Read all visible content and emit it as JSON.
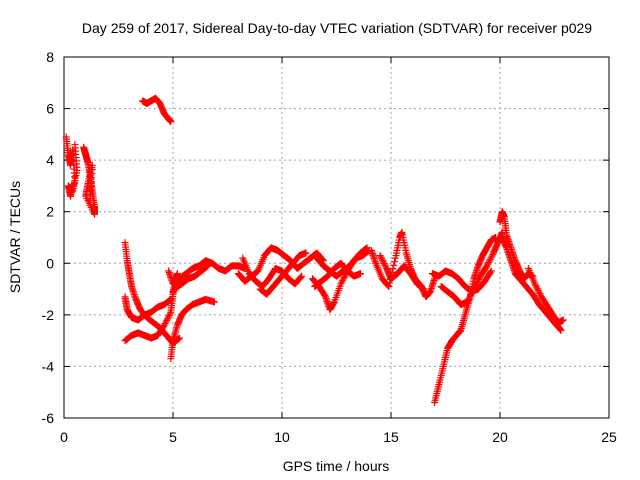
{
  "chart_data": {
    "type": "scatter",
    "title": "Day 259 of 2017, Sidereal Day-to-day VTEC variation (SDTVAR) for receiver p029",
    "xlabel": "GPS time / hours",
    "ylabel": "SDTVAR / TECUs",
    "xlim": [
      0,
      25
    ],
    "ylim": [
      -6,
      8
    ],
    "xticks": [
      0,
      5,
      10,
      15,
      20,
      25
    ],
    "yticks": [
      -6,
      -4,
      -2,
      0,
      2,
      4,
      6,
      8
    ],
    "xtick_labels": [
      "0",
      "5",
      "10",
      "15",
      "20",
      "25"
    ],
    "ytick_labels": [
      "-6",
      "-4",
      "-2",
      "0",
      "2",
      "4",
      "6",
      "8"
    ],
    "grid": true,
    "marker": "plus",
    "series": [
      {
        "name": "SDTVAR",
        "color": "#ff0000",
        "segments": [
          [
            [
              0.1,
              4.9
            ],
            [
              0.2,
              4.2
            ],
            [
              0.3,
              3.8
            ],
            [
              0.4,
              4.4
            ],
            [
              0.5,
              3.2
            ],
            [
              0.3,
              2.6
            ],
            [
              0.2,
              3.0
            ],
            [
              0.4,
              2.8
            ],
            [
              0.6,
              3.6
            ],
            [
              0.5,
              4.6
            ]
          ],
          [
            [
              0.9,
              4.5
            ],
            [
              1.0,
              4.2
            ],
            [
              1.1,
              3.9
            ],
            [
              1.2,
              3.4
            ],
            [
              1.3,
              2.8
            ],
            [
              1.4,
              2.2
            ],
            [
              1.4,
              1.9
            ],
            [
              1.0,
              2.6
            ],
            [
              1.1,
              3.1
            ],
            [
              1.3,
              3.8
            ],
            [
              1.2,
              2.5
            ]
          ],
          [
            [
              3.6,
              6.3
            ],
            [
              3.8,
              6.2
            ],
            [
              4.0,
              6.3
            ],
            [
              4.2,
              6.4
            ],
            [
              4.4,
              6.2
            ],
            [
              4.6,
              5.8
            ],
            [
              4.8,
              5.6
            ],
            [
              4.9,
              5.5
            ]
          ],
          [
            [
              2.8,
              0.8
            ],
            [
              2.9,
              0.1
            ],
            [
              3.0,
              -0.4
            ],
            [
              3.1,
              -0.9
            ],
            [
              3.3,
              -1.4
            ],
            [
              3.5,
              -1.8
            ],
            [
              3.8,
              -2.1
            ],
            [
              4.1,
              -2.3
            ],
            [
              4.4,
              -2.5
            ],
            [
              4.7,
              -2.8
            ],
            [
              5.0,
              -3.1
            ],
            [
              5.3,
              -2.9
            ]
          ],
          [
            [
              2.8,
              -1.3
            ],
            [
              2.9,
              -1.8
            ],
            [
              3.1,
              -2.1
            ],
            [
              3.4,
              -2.2
            ],
            [
              3.7,
              -2.0
            ],
            [
              4.0,
              -1.9
            ],
            [
              4.3,
              -1.7
            ],
            [
              4.6,
              -1.6
            ],
            [
              4.9,
              -1.4
            ]
          ],
          [
            [
              2.8,
              -3.0
            ],
            [
              3.1,
              -2.8
            ],
            [
              3.4,
              -2.7
            ],
            [
              3.7,
              -2.8
            ],
            [
              4.0,
              -2.9
            ],
            [
              4.3,
              -2.8
            ],
            [
              4.6,
              -2.4
            ],
            [
              4.9,
              -1.9
            ],
            [
              5.0,
              -1.2
            ],
            [
              5.1,
              -0.7
            ],
            [
              5.2,
              -0.4
            ]
          ],
          [
            [
              4.9,
              -3.7
            ],
            [
              5.0,
              -3.0
            ],
            [
              5.2,
              -2.4
            ],
            [
              5.4,
              -2.0
            ],
            [
              5.6,
              -1.8
            ],
            [
              5.9,
              -1.6
            ],
            [
              6.2,
              -1.5
            ],
            [
              6.5,
              -1.4
            ],
            [
              6.9,
              -1.5
            ]
          ],
          [
            [
              4.8,
              -0.3
            ],
            [
              5.0,
              -0.8
            ],
            [
              5.3,
              -0.6
            ],
            [
              5.6,
              -0.4
            ],
            [
              5.9,
              -0.2
            ],
            [
              6.2,
              -0.1
            ],
            [
              6.5,
              0.1
            ],
            [
              6.8,
              0.0
            ],
            [
              7.1,
              -0.2
            ],
            [
              7.4,
              -0.3
            ],
            [
              7.7,
              -0.1
            ],
            [
              8.0,
              -0.1
            ],
            [
              8.3,
              -0.2
            ]
          ],
          [
            [
              5.0,
              -1.1
            ],
            [
              5.2,
              -0.9
            ],
            [
              5.4,
              -0.8
            ],
            [
              5.7,
              -0.6
            ],
            [
              6.0,
              -0.5
            ],
            [
              6.3,
              -0.3
            ],
            [
              6.6,
              -0.1
            ]
          ],
          [
            [
              8.0,
              -0.4
            ],
            [
              8.3,
              -0.7
            ],
            [
              8.6,
              -0.5
            ],
            [
              8.9,
              -0.3
            ],
            [
              9.2,
              0.3
            ],
            [
              9.5,
              0.6
            ],
            [
              9.8,
              0.5
            ],
            [
              10.1,
              0.3
            ],
            [
              10.4,
              0.1
            ],
            [
              10.7,
              -0.2
            ],
            [
              11.0,
              0.0
            ],
            [
              11.3,
              0.2
            ],
            [
              11.6,
              0.4
            ],
            [
              11.9,
              0.1
            ]
          ],
          [
            [
              8.2,
              0.2
            ],
            [
              8.5,
              -0.4
            ],
            [
              8.8,
              -0.7
            ],
            [
              9.1,
              -0.9
            ],
            [
              9.4,
              -0.6
            ],
            [
              9.7,
              -0.2
            ],
            [
              10.0,
              -0.3
            ],
            [
              10.3,
              -0.6
            ],
            [
              10.6,
              -0.8
            ],
            [
              10.9,
              -0.5
            ]
          ],
          [
            [
              9.0,
              -1.0
            ],
            [
              9.3,
              -1.2
            ],
            [
              9.6,
              -0.9
            ],
            [
              9.9,
              -0.6
            ],
            [
              10.2,
              -0.3
            ],
            [
              10.5,
              0.0
            ],
            [
              10.8,
              0.3
            ],
            [
              11.1,
              0.4
            ]
          ],
          [
            [
              11.4,
              -0.6
            ],
            [
              11.7,
              -0.9
            ],
            [
              12.0,
              -1.3
            ],
            [
              12.2,
              -1.8
            ],
            [
              12.4,
              -1.5
            ],
            [
              12.7,
              -0.8
            ],
            [
              13.0,
              -0.3
            ],
            [
              13.3,
              0.1
            ],
            [
              13.6,
              0.4
            ],
            [
              13.9,
              0.6
            ]
          ],
          [
            [
              11.6,
              0.2
            ],
            [
              11.9,
              -0.1
            ],
            [
              12.2,
              -0.3
            ],
            [
              12.5,
              -0.5
            ],
            [
              12.8,
              -0.3
            ],
            [
              13.1,
              -0.1
            ],
            [
              13.4,
              0.2
            ],
            [
              13.7,
              0.3
            ],
            [
              14.0,
              0.5
            ]
          ],
          [
            [
              11.5,
              -0.9
            ],
            [
              11.8,
              -0.7
            ],
            [
              12.1,
              -0.5
            ],
            [
              12.4,
              -0.2
            ],
            [
              12.7,
              0.0
            ],
            [
              13.0,
              -0.3
            ],
            [
              13.3,
              -0.5
            ],
            [
              13.6,
              -0.4
            ]
          ],
          [
            [
              14.1,
              0.5
            ],
            [
              14.3,
              0.0
            ],
            [
              14.6,
              -0.6
            ],
            [
              14.9,
              -0.9
            ],
            [
              15.2,
              0.2
            ],
            [
              15.4,
              1.0
            ],
            [
              15.5,
              1.2
            ],
            [
              15.7,
              0.4
            ],
            [
              15.9,
              -0.2
            ],
            [
              16.1,
              -0.6
            ],
            [
              16.4,
              -0.9
            ],
            [
              16.6,
              -1.3
            ],
            [
              16.8,
              -1.1
            ],
            [
              17.0,
              -0.6
            ]
          ],
          [
            [
              14.5,
              0.3
            ],
            [
              14.8,
              -0.2
            ],
            [
              15.0,
              -0.6
            ],
            [
              15.3,
              -0.4
            ],
            [
              15.6,
              -0.1
            ],
            [
              15.9,
              -0.4
            ],
            [
              16.2,
              -0.8
            ],
            [
              16.5,
              -1.0
            ]
          ],
          [
            [
              16.9,
              -0.4
            ],
            [
              17.2,
              -0.5
            ],
            [
              17.5,
              -0.3
            ],
            [
              17.8,
              -0.4
            ],
            [
              18.1,
              -0.6
            ],
            [
              18.4,
              -0.9
            ],
            [
              18.7,
              -1.1
            ],
            [
              19.0,
              -1.0
            ],
            [
              19.3,
              -0.7
            ],
            [
              19.6,
              -0.3
            ]
          ],
          [
            [
              17.3,
              -0.9
            ],
            [
              17.6,
              -1.1
            ],
            [
              17.9,
              -1.3
            ],
            [
              18.2,
              -1.6
            ],
            [
              18.5,
              -1.5
            ],
            [
              18.8,
              -1.0
            ],
            [
              19.1,
              -0.5
            ],
            [
              19.4,
              -0.1
            ],
            [
              19.7,
              0.4
            ],
            [
              19.9,
              0.8
            ],
            [
              20.1,
              1.2
            ]
          ],
          [
            [
              17.0,
              -5.4
            ],
            [
              17.2,
              -4.7
            ],
            [
              17.4,
              -4.0
            ],
            [
              17.6,
              -3.3
            ],
            [
              17.8,
              -3.0
            ],
            [
              18.0,
              -2.8
            ],
            [
              18.2,
              -2.6
            ],
            [
              18.4,
              -2.0
            ],
            [
              18.6,
              -1.4
            ],
            [
              18.8,
              -0.6
            ],
            [
              19.0,
              -0.1
            ],
            [
              19.2,
              0.3
            ],
            [
              19.4,
              0.6
            ],
            [
              19.6,
              0.9
            ],
            [
              19.8,
              1.0
            ]
          ],
          [
            [
              20.0,
              1.6
            ],
            [
              20.1,
              2.0
            ],
            [
              20.2,
              1.8
            ],
            [
              20.3,
              1.1
            ],
            [
              20.5,
              0.6
            ],
            [
              20.7,
              0.1
            ],
            [
              20.9,
              -0.3
            ],
            [
              21.1,
              -0.6
            ],
            [
              21.3,
              -0.4
            ],
            [
              21.5,
              -0.5
            ]
          ],
          [
            [
              20.1,
              1.0
            ],
            [
              20.3,
              0.6
            ],
            [
              20.5,
              0.1
            ],
            [
              20.7,
              -0.4
            ],
            [
              20.9,
              -0.6
            ],
            [
              21.2,
              -0.9
            ],
            [
              21.5,
              -1.2
            ],
            [
              21.8,
              -1.6
            ],
            [
              22.1,
              -1.9
            ],
            [
              22.4,
              -2.2
            ],
            [
              22.6,
              -2.4
            ],
            [
              22.8,
              -2.6
            ]
          ],
          [
            [
              21.3,
              -0.2
            ],
            [
              21.6,
              -0.8
            ],
            [
              21.9,
              -1.3
            ],
            [
              22.2,
              -1.7
            ],
            [
              22.5,
              -2.1
            ],
            [
              22.7,
              -2.3
            ],
            [
              22.9,
              -2.2
            ]
          ]
        ]
      }
    ]
  }
}
